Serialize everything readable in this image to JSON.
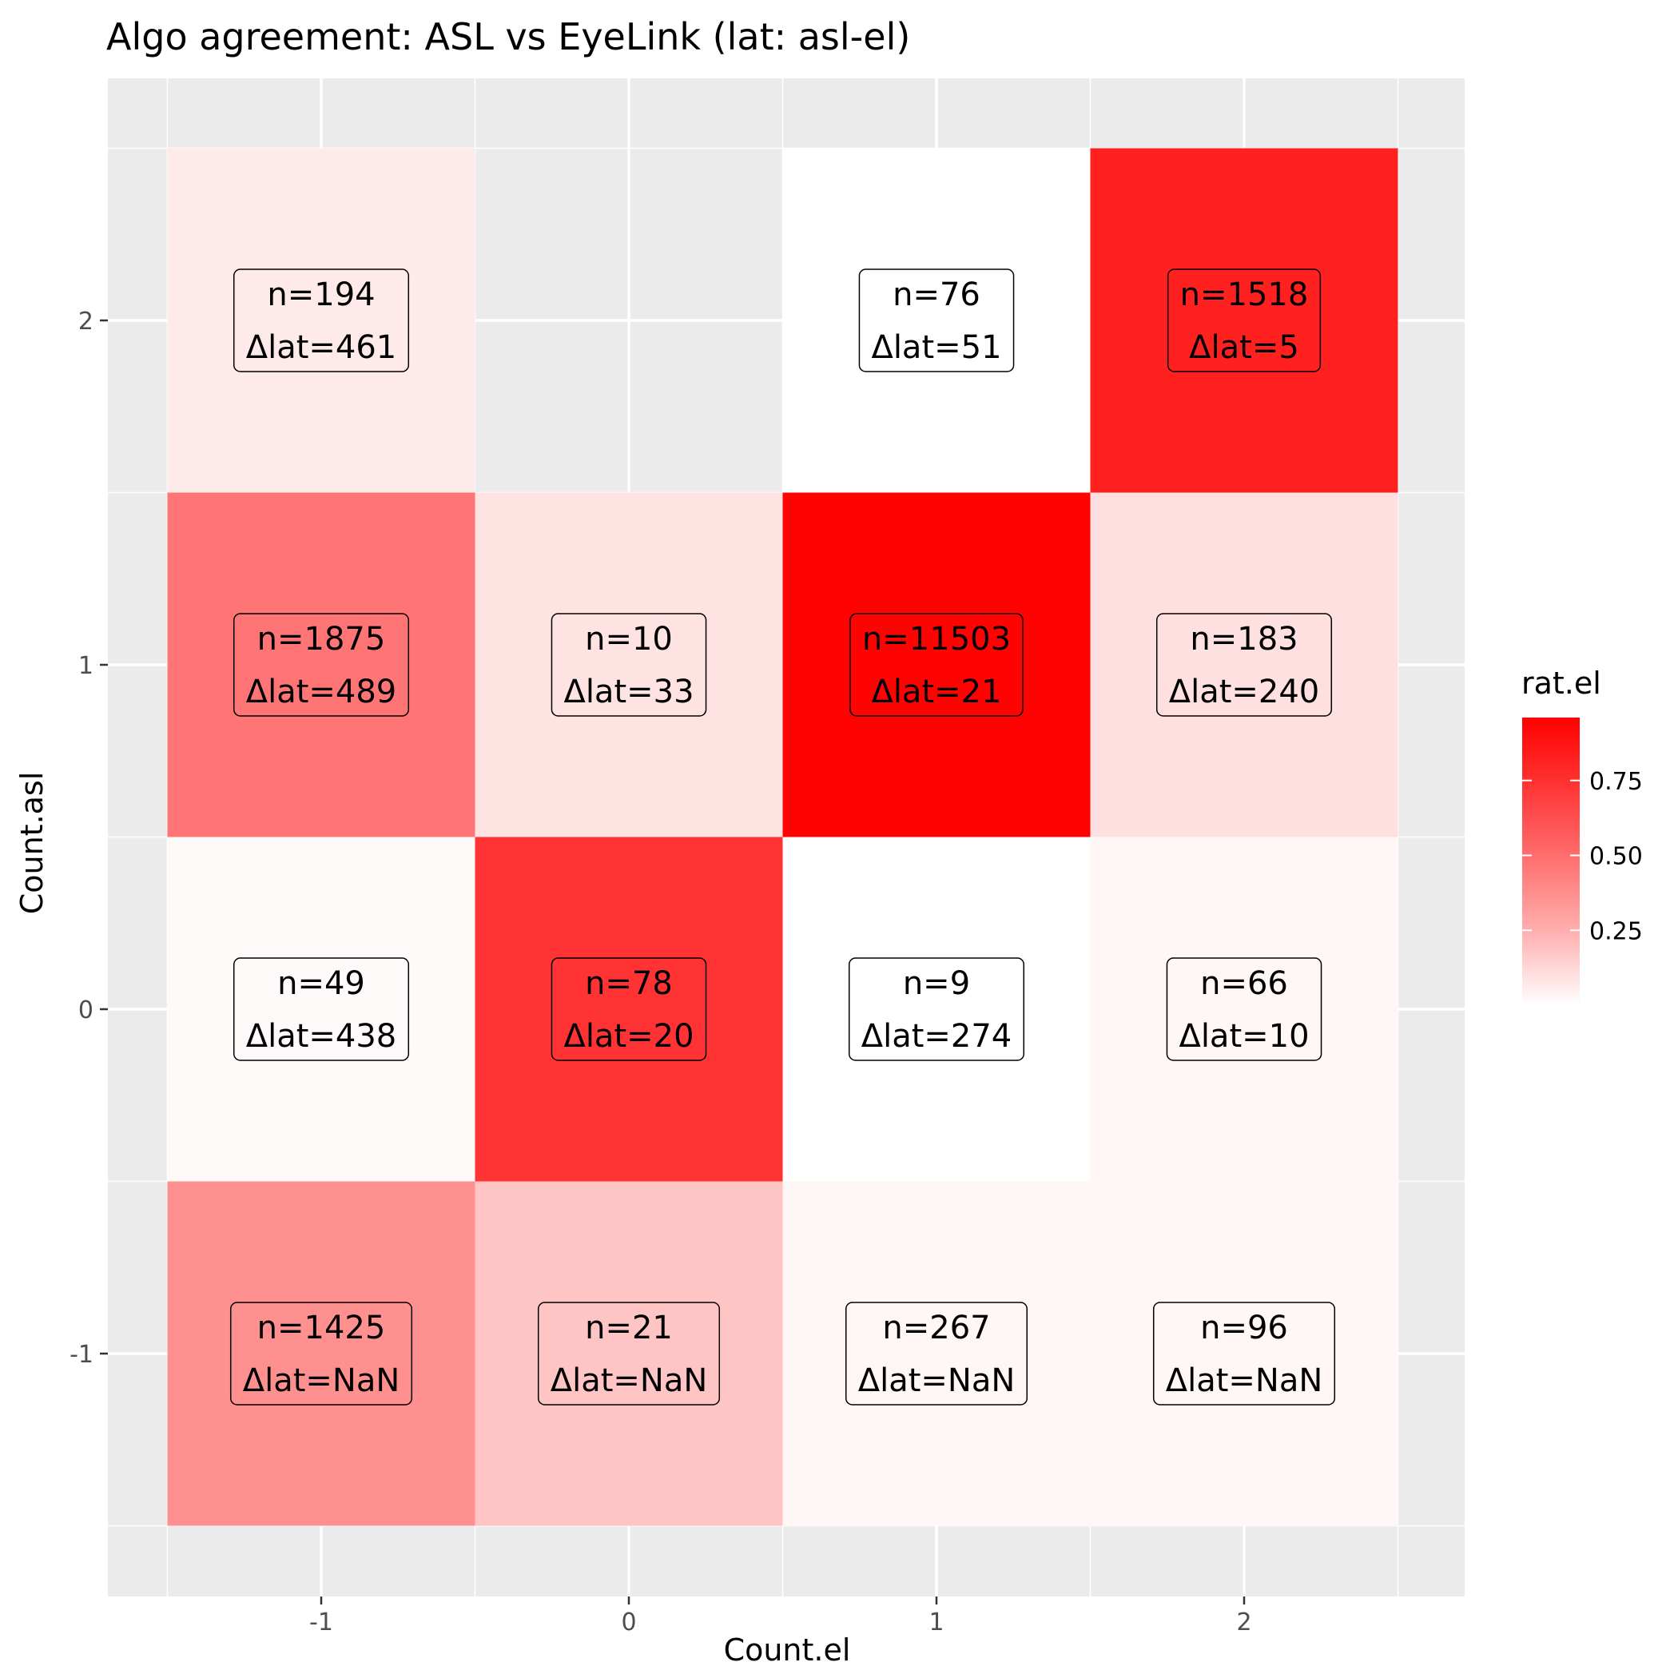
{
  "chart_data": {
    "type": "heatmap",
    "title": "Algo agreement: ASL vs EyeLink (lat: asl-el)",
    "xlabel": "Count.el",
    "ylabel": "Count.asl",
    "x_categories": [
      "-1",
      "0",
      "1",
      "2"
    ],
    "y_categories": [
      "-1",
      "0",
      "1",
      "2"
    ],
    "cells": [
      {
        "x": "-1",
        "y": "2",
        "n": "n=194",
        "dlat": "Δlat=461",
        "rat": 0.05
      },
      {
        "x": "1",
        "y": "2",
        "n": "n=76",
        "dlat": "Δlat=51",
        "rat": 0.0
      },
      {
        "x": "2",
        "y": "2",
        "n": "n=1518",
        "dlat": "Δlat=5",
        "rat": 0.82
      },
      {
        "x": "-1",
        "y": "1",
        "n": "n=1875",
        "dlat": "Δlat=489",
        "rat": 0.47
      },
      {
        "x": "0",
        "y": "1",
        "n": "n=10",
        "dlat": "Δlat=33",
        "rat": 0.07
      },
      {
        "x": "1",
        "y": "1",
        "n": "n=11503",
        "dlat": "Δlat=21",
        "rat": 0.95
      },
      {
        "x": "2",
        "y": "1",
        "n": "n=183",
        "dlat": "Δlat=240",
        "rat": 0.08
      },
      {
        "x": "-1",
        "y": "0",
        "n": "n=49",
        "dlat": "Δlat=438",
        "rat": 0.01
      },
      {
        "x": "0",
        "y": "0",
        "n": "n=78",
        "dlat": "Δlat=20",
        "rat": 0.74
      },
      {
        "x": "1",
        "y": "0",
        "n": "n=9",
        "dlat": "Δlat=274",
        "rat": 0.0
      },
      {
        "x": "2",
        "y": "0",
        "n": "n=66",
        "dlat": "Δlat=10",
        "rat": 0.02
      },
      {
        "x": "-1",
        "y": "-1",
        "n": "n=1425",
        "dlat": "Δlat=NaN",
        "rat": 0.36
      },
      {
        "x": "0",
        "y": "-1",
        "n": "n=21",
        "dlat": "Δlat=NaN",
        "rat": 0.17
      },
      {
        "x": "1",
        "y": "-1",
        "n": "n=267",
        "dlat": "Δlat=NaN",
        "rat": 0.02
      },
      {
        "x": "2",
        "y": "-1",
        "n": "n=96",
        "dlat": "Δlat=NaN",
        "rat": 0.02
      }
    ],
    "legend": {
      "title": "rat.el",
      "placement": "right",
      "range": [
        0.0,
        0.96
      ],
      "ticks": [
        0.25,
        0.5,
        0.75
      ],
      "tick_labels": [
        "0.25",
        "0.50",
        "0.75"
      ],
      "low_color": "#ffffff",
      "high_color": "#ff0000"
    },
    "grid": true,
    "panel_background": "#ebebeb"
  }
}
